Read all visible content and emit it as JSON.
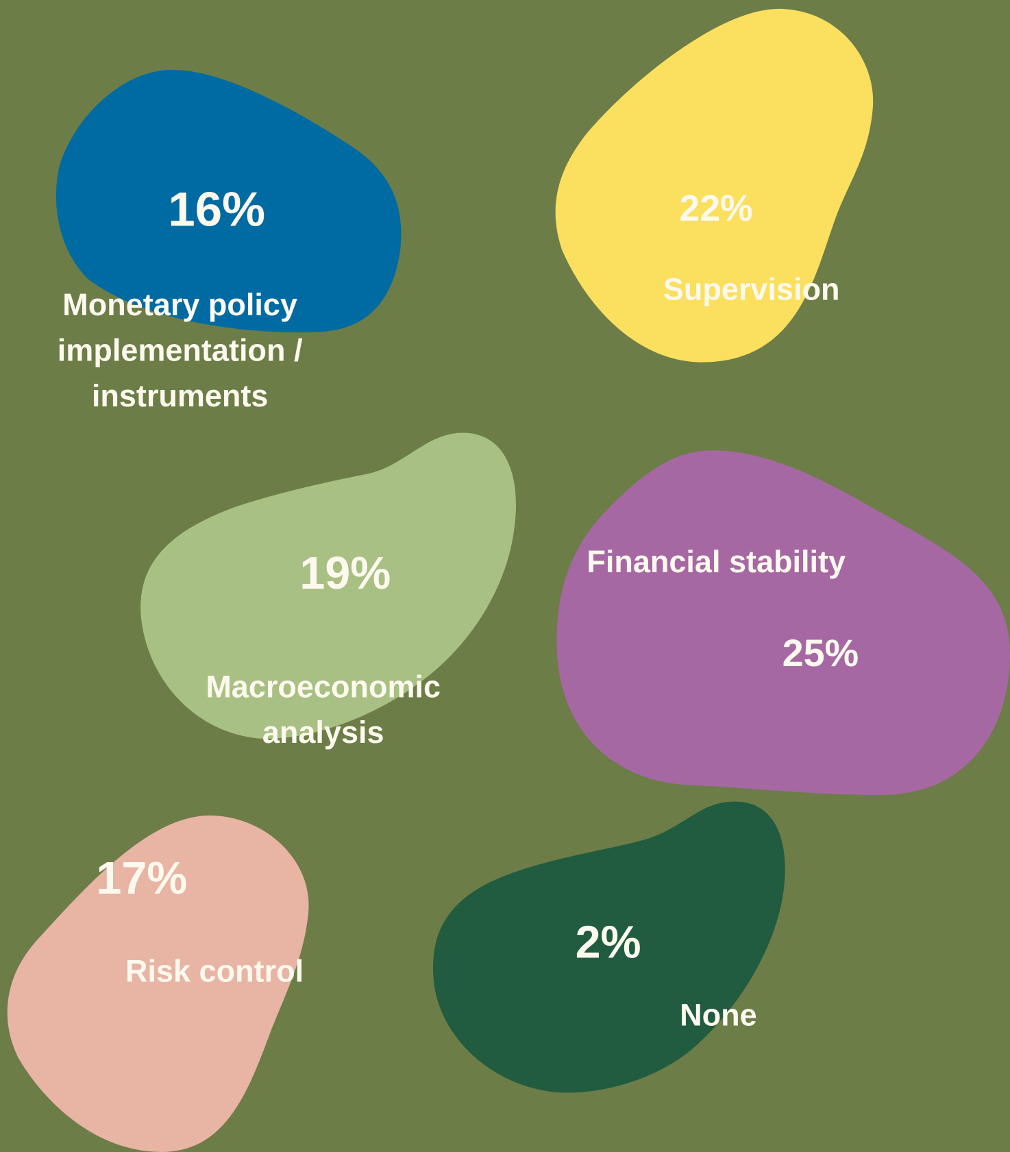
{
  "chart_data": {
    "type": "blob",
    "categories": [
      "Monetary policy implementation / instruments",
      "Supervision",
      "Macroeconomic analysis",
      "Financial stability",
      "Risk control",
      "None"
    ],
    "values": [
      16,
      22,
      19,
      25,
      17,
      2
    ],
    "value_labels": [
      "16%",
      "22%",
      "19%",
      "25%",
      "17%",
      "2%"
    ],
    "colors": [
      "#006ba3",
      "#fbdf5e",
      "#a8c083",
      "#a668a3",
      "#e8b4a4",
      "#215c40"
    ],
    "background": "#6c7d48"
  }
}
